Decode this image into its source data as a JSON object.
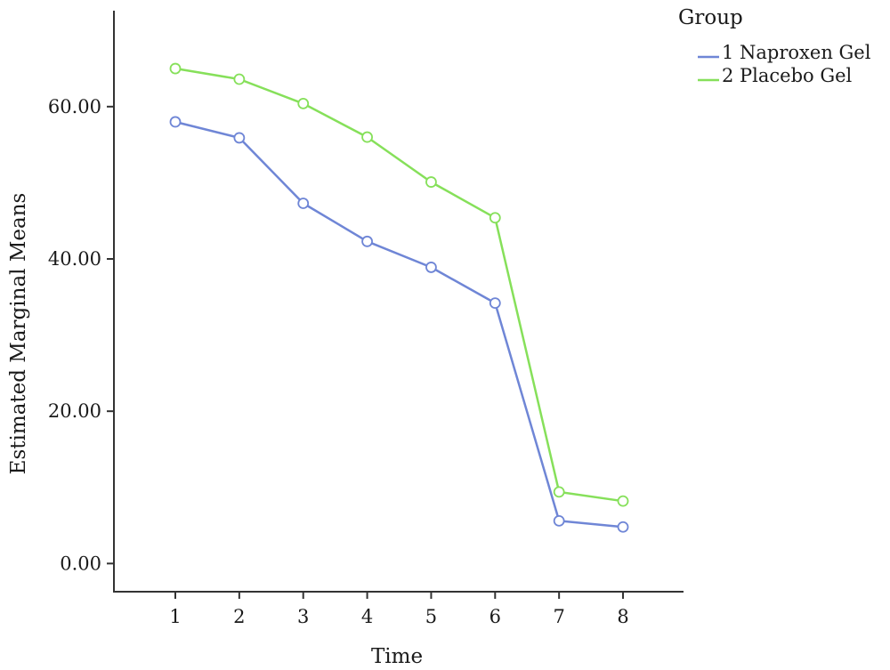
{
  "chart_data": {
    "type": "line",
    "title": "",
    "xlabel": "Time",
    "ylabel": "Estimated Marginal Means",
    "categories": [
      "1",
      "2",
      "3",
      "4",
      "5",
      "6",
      "7",
      "8"
    ],
    "yticks": [
      "0.00",
      "20.00",
      "40.00",
      "60.00"
    ],
    "ylim": [
      -3.7,
      72.6
    ],
    "grid": false,
    "legend": {
      "title": "Group",
      "placement": "top-right"
    },
    "series": [
      {
        "name": "1 Naproxen Gel",
        "color": "#6f86d6",
        "values": [
          58.0,
          55.9,
          47.3,
          42.3,
          38.9,
          34.2,
          5.6,
          4.8
        ]
      },
      {
        "name": "2 Placebo Gel",
        "color": "#86e05a",
        "values": [
          65.0,
          63.6,
          60.4,
          56.0,
          50.1,
          45.4,
          9.4,
          8.2
        ]
      }
    ]
  }
}
